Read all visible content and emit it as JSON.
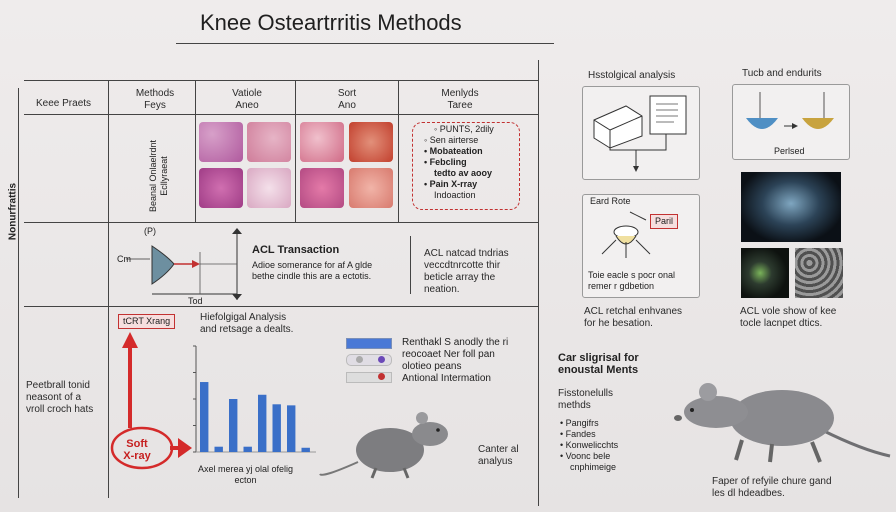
{
  "title": "Knee Osteartrritis Methods",
  "side_label": "Nonurfrattis",
  "table": {
    "headers": [
      "Keee Praets",
      "Methods\nFeys",
      "Vatiole\nAneo",
      "Sort\nAno",
      "Menlyds\nTaree"
    ],
    "row1_label": "Beanal Onlaelrdnt\nEcllyraeat",
    "list_items": [
      "PUNTS, 2dily",
      "Sen airterse",
      "Mobateation",
      "Febcling",
      "tedto av aooy",
      "Pain X-rray",
      "Indoaction"
    ],
    "row2": {
      "axis_label": "Cm",
      "x_label": "Tod",
      "p_label": "(P)",
      "acl_title": "ACL Transaction",
      "acl_text": "Adioe somerance for af A glde\nbethe cindle this are a ectotis.",
      "acl_right": "ACL natcad tndrias\nveccdtnrcotte thir\nbeticle array the\nneation."
    },
    "row3": {
      "label": "Peetbrall tonid\nneasont of  a\nvroll croch hats",
      "xray_tag": "tCRT Xrang",
      "hist_title": "Hiefolgigal Analysis\nand retsage a dealts.",
      "soft_label": "Soft\nX-ray",
      "chart_caption": "Axel merea yj olal ofelig\necton",
      "legend": [
        "Renthakl S anodly the ri",
        "reocoaet Ner foll pan",
        "olotieo peans",
        "Antional Intermation"
      ],
      "rat_caption": "Canter al\nanalyus"
    }
  },
  "right": {
    "hist_title": "Hsstolgical analysis",
    "tuch_title": "Tucb and endurits",
    "tuch_caption": "Perlsed",
    "device_labels": [
      "Eard Rote",
      "Paril"
    ],
    "device_caption": "Toie eacle s pocr onal\nremer r gdbetion",
    "acl_left": "ACL retchal enhvanes\nfor he besation.",
    "acl_right": "ACL vole show of kee\ntocle lacnpet dtics.",
    "car_title": "Car sligrisal for\nenoustal Ments",
    "methods_title": "Fisstonelulls\nmethds",
    "methods_items": [
      "Pangifrs",
      "Fandes",
      "Konwelicchts",
      "Voonc bele"
    ],
    "methods_last": "cnphimeige",
    "rat_caption": "Faper of refyile chure gand\nles dl hdeadbes."
  },
  "chart_data": {
    "type": "bar",
    "categories": [
      "1",
      "2",
      "3",
      "4",
      "5",
      "6",
      "7",
      "8"
    ],
    "values": [
      66,
      5,
      50,
      5,
      54,
      45,
      44,
      4
    ],
    "ylim": [
      0,
      100
    ],
    "title": "",
    "xlabel": "",
    "ylabel": ""
  },
  "colors": {
    "bar": "#3a6fc8",
    "accent_red": "#d42a2a",
    "dashed_red": "#c23131",
    "legend_blue": "#4a79d6"
  }
}
